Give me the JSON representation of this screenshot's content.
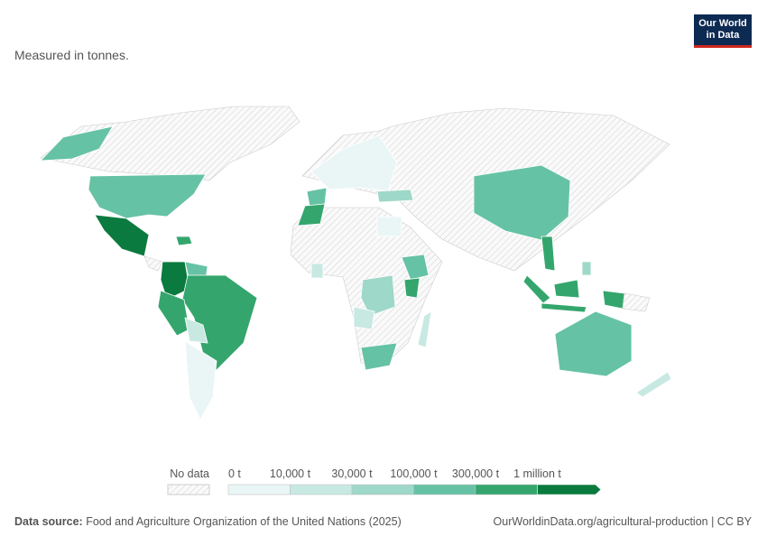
{
  "header": {
    "subtitle": "Measured in tonnes.",
    "logo_line1": "Our World",
    "logo_line2": "in Data"
  },
  "legend": {
    "no_data": "No data",
    "bins": [
      "0 t",
      "10,000 t",
      "30,000 t",
      "100,000 t",
      "300,000 t",
      "1 million t"
    ],
    "colors": [
      "#eaf6f5",
      "#c8e9e2",
      "#9ed8c8",
      "#66c2a5",
      "#34a66d",
      "#0b7a3e"
    ]
  },
  "footer": {
    "source_label": "Data source:",
    "source": "Food and Agriculture Organization of the United Nations (2025)",
    "url": "OurWorldinData.org/agricultural-production | CC BY"
  }
}
